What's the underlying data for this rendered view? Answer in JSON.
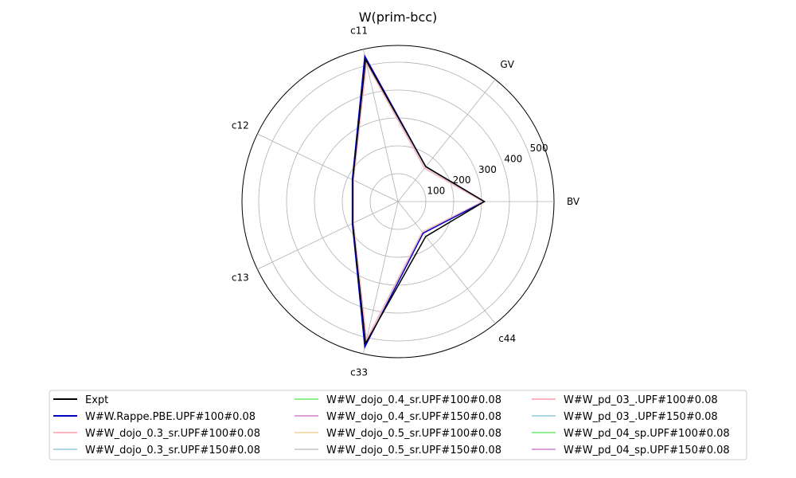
{
  "chart_data": {
    "type": "radar",
    "title": "W(prim-bcc)",
    "axes": [
      "BV",
      "GV",
      "c11",
      "c12",
      "c13",
      "c33",
      "c44"
    ],
    "radial_ticks": [
      100,
      200,
      300,
      400,
      500
    ],
    "rmax": 560,
    "grid": true,
    "legend_position": "bottom",
    "series": [
      {
        "name": "Expt",
        "color": "#000000",
        "values": [
          310,
          160,
          522,
          180,
          180,
          522,
          160
        ]
      },
      {
        "name": "W#W.Rappe.PBE.UPF#100#0.08",
        "color": "#0000cd",
        "values": [
          310,
          160,
          535,
          182,
          182,
          535,
          145
        ]
      },
      {
        "name": "W#W_dojo_0.3_sr.UPF#100#0.08",
        "color": "#ffb6c1",
        "values": [
          305,
          153,
          510,
          178,
          178,
          510,
          140
        ]
      },
      {
        "name": "W#W_dojo_0.3_sr.UPF#150#0.08",
        "color": "#add8e6",
        "values": [
          305,
          153,
          510,
          178,
          178,
          510,
          140
        ]
      },
      {
        "name": "W#W_dojo_0.4_sr.UPF#100#0.08",
        "color": "#90ee90",
        "values": [
          305,
          153,
          510,
          178,
          178,
          510,
          140
        ]
      },
      {
        "name": "W#W_dojo_0.4_sr.UPF#150#0.08",
        "color": "#dda0dd",
        "values": [
          305,
          153,
          510,
          178,
          178,
          510,
          140
        ]
      },
      {
        "name": "W#W_dojo_0.5_sr.UPF#100#0.08",
        "color": "#f5deb3",
        "values": [
          305,
          153,
          510,
          178,
          178,
          510,
          140
        ]
      },
      {
        "name": "W#W_dojo_0.5_sr.UPF#150#0.08",
        "color": "#d3d3d3",
        "values": [
          305,
          153,
          510,
          178,
          178,
          510,
          140
        ]
      },
      {
        "name": "W#W_pd_03_.UPF#100#0.08",
        "color": "#ffb6c1",
        "values": [
          305,
          153,
          510,
          178,
          178,
          510,
          140
        ]
      },
      {
        "name": "W#W_pd_03_.UPF#150#0.08",
        "color": "#add8e6",
        "values": [
          305,
          153,
          510,
          178,
          178,
          510,
          140
        ]
      },
      {
        "name": "W#W_pd_04_sp.UPF#100#0.08",
        "color": "#90ee90",
        "values": [
          305,
          153,
          510,
          178,
          178,
          510,
          140
        ]
      },
      {
        "name": "W#W_pd_04_sp.UPF#150#0.08",
        "color": "#dda0dd",
        "values": [
          305,
          153,
          510,
          178,
          178,
          510,
          140
        ]
      }
    ]
  }
}
